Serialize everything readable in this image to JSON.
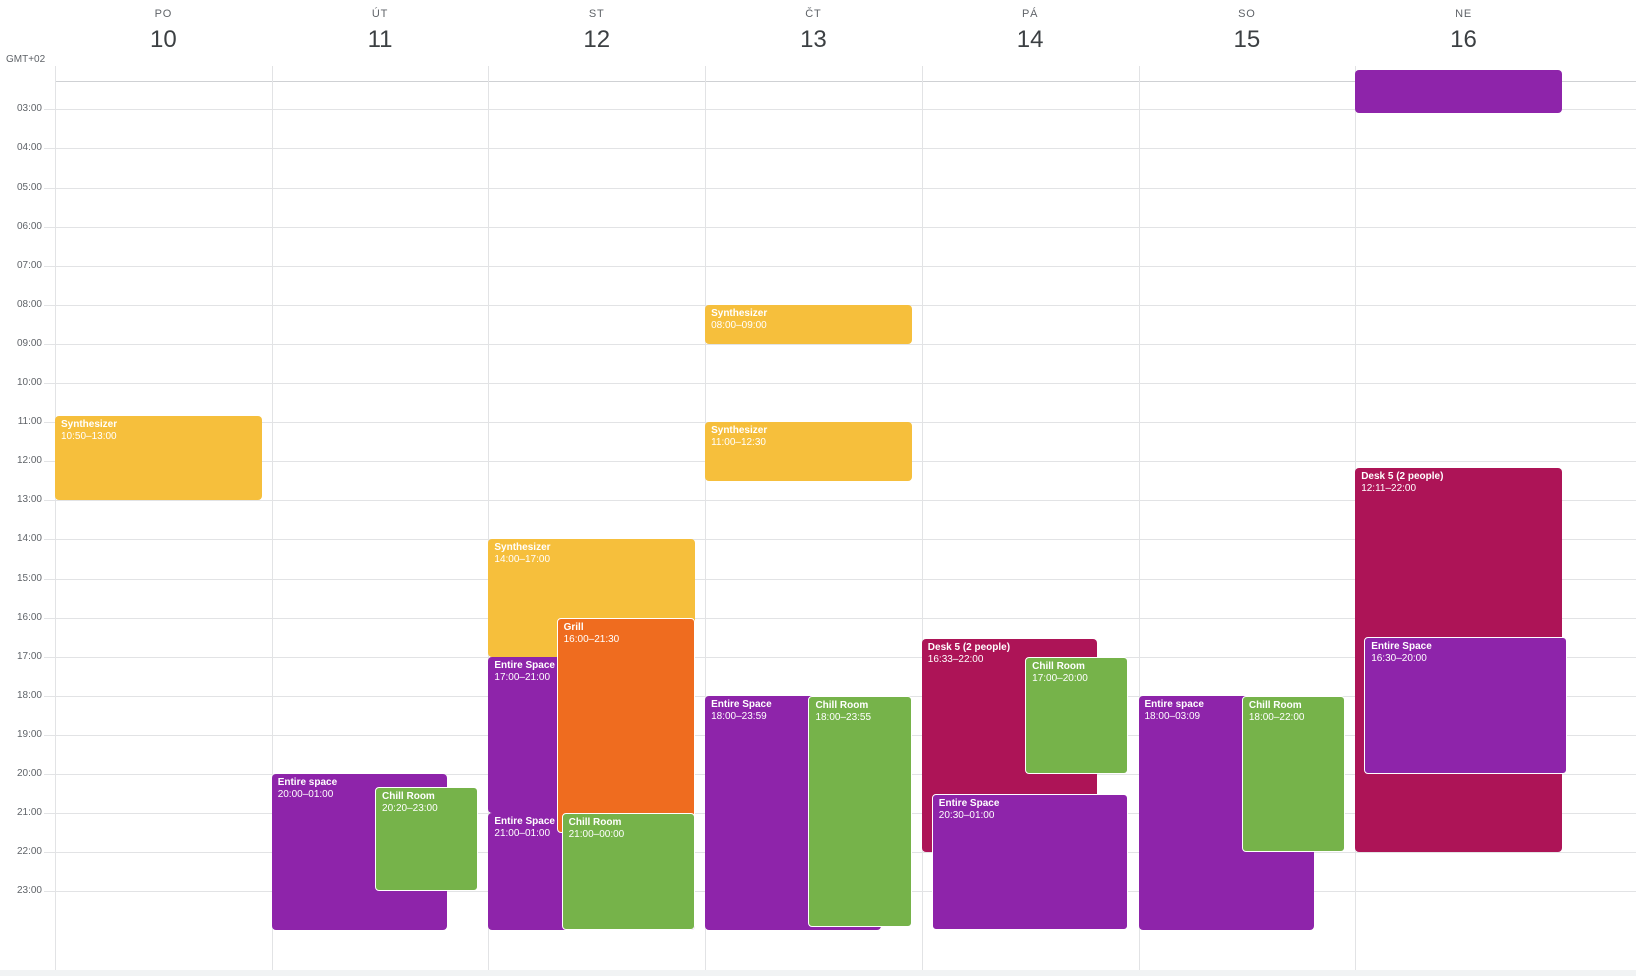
{
  "timezone_label": "GMT+02",
  "days": [
    {
      "dow": "PO",
      "num": "10"
    },
    {
      "dow": "ÚT",
      "num": "11"
    },
    {
      "dow": "ST",
      "num": "12"
    },
    {
      "dow": "ČT",
      "num": "13"
    },
    {
      "dow": "PÁ",
      "num": "14"
    },
    {
      "dow": "SO",
      "num": "15"
    },
    {
      "dow": "NE",
      "num": "16"
    }
  ],
  "hours": [
    "03:00",
    "04:00",
    "05:00",
    "06:00",
    "07:00",
    "08:00",
    "09:00",
    "10:00",
    "11:00",
    "12:00",
    "13:00",
    "14:00",
    "15:00",
    "16:00",
    "17:00",
    "18:00",
    "19:00",
    "20:00",
    "21:00",
    "22:00",
    "23:00"
  ],
  "colors": {
    "purple": "#8e24aa",
    "yellow": "#f6bf3c",
    "orange": "#ef6c1f",
    "green": "#76b34a",
    "crimson": "#ad1457"
  },
  "events": [
    {
      "title": "",
      "time": "",
      "day": 6,
      "start": 2.0,
      "end": 3.1,
      "color": "purple",
      "col": 0,
      "cols": 1
    },
    {
      "title": "Synthesizer",
      "time": "10:50–13:00",
      "day": 0,
      "start": 10.833,
      "end": 13.0,
      "color": "yellow",
      "col": 0,
      "cols": 1
    },
    {
      "title": "Entire space",
      "time": "20:00–01:00",
      "day": 1,
      "start": 20.0,
      "end": 24.0,
      "color": "purple",
      "col": 0,
      "cols": 1,
      "narrow": true
    },
    {
      "title": "Chill Room",
      "time": "20:20–23:00",
      "day": 1,
      "start": 20.333,
      "end": 23.0,
      "color": "green",
      "col": 1,
      "cols": 2,
      "border": true
    },
    {
      "title": "Synthesizer",
      "time": "14:00–17:00",
      "day": 2,
      "start": 14.0,
      "end": 17.0,
      "color": "yellow",
      "col": 0,
      "cols": 1
    },
    {
      "title": "Entire Space",
      "time": "17:00–21:00",
      "day": 2,
      "start": 17.0,
      "end": 21.0,
      "color": "purple",
      "col": 0,
      "cols": 1
    },
    {
      "title": "Entire Space",
      "time": "21:00–01:00",
      "day": 2,
      "start": 21.0,
      "end": 24.0,
      "color": "purple",
      "col": 0,
      "cols": 1
    },
    {
      "title": "Grill",
      "time": "16:00–21:30",
      "day": 2,
      "start": 16.0,
      "end": 21.5,
      "color": "orange",
      "col": 1,
      "cols": 3,
      "border": true
    },
    {
      "title": "Chill Room",
      "time": "21:00–00:00",
      "day": 2,
      "start": 21.0,
      "end": 24.0,
      "color": "green",
      "col": 2,
      "cols": 3,
      "border": true
    },
    {
      "title": "Synthesizer",
      "time": "08:00–09:00",
      "day": 3,
      "start": 8.0,
      "end": 9.0,
      "color": "yellow",
      "col": 0,
      "cols": 1
    },
    {
      "title": "Synthesizer",
      "time": "11:00–12:30",
      "day": 3,
      "start": 11.0,
      "end": 12.5,
      "color": "yellow",
      "col": 0,
      "cols": 1
    },
    {
      "title": "Entire Space",
      "time": "18:00–23:59",
      "day": 3,
      "start": 18.0,
      "end": 23.983,
      "color": "purple",
      "col": 0,
      "cols": 1,
      "narrow": true
    },
    {
      "title": "Chill Room",
      "time": "18:00–23:55",
      "day": 3,
      "start": 18.0,
      "end": 23.917,
      "color": "green",
      "col": 1,
      "cols": 2,
      "border": true
    },
    {
      "title": "Desk 5 (2 people)",
      "time": "16:33–22:00",
      "day": 4,
      "start": 16.55,
      "end": 22.0,
      "color": "crimson",
      "col": 0,
      "cols": 1,
      "narrow": true
    },
    {
      "title": "Chill Room",
      "time": "17:00–20:00",
      "day": 4,
      "start": 17.0,
      "end": 20.0,
      "color": "green",
      "col": 1,
      "cols": 2,
      "border": true
    },
    {
      "title": "Entire Space",
      "time": "20:30–01:00",
      "day": 4,
      "start": 20.5,
      "end": 24.0,
      "color": "purple",
      "col": 3,
      "cols": 4,
      "border": true
    },
    {
      "title": "Entire space",
      "time": "18:00–03:09",
      "day": 5,
      "start": 18.0,
      "end": 24.0,
      "color": "purple",
      "col": 0,
      "cols": 1,
      "narrow": true
    },
    {
      "title": "Chill Room",
      "time": "18:00–22:00",
      "day": 5,
      "start": 18.0,
      "end": 22.0,
      "color": "green",
      "col": 1,
      "cols": 2,
      "border": true
    },
    {
      "title": "Desk 5 (2 people)",
      "time": "12:11–22:00",
      "day": 6,
      "start": 12.183,
      "end": 22.0,
      "color": "crimson",
      "col": 0,
      "cols": 1
    },
    {
      "title": "Entire Space",
      "time": "16:30–20:00",
      "day": 6,
      "start": 16.5,
      "end": 20.0,
      "color": "purple",
      "col": 1,
      "cols": 20,
      "border": true
    }
  ]
}
